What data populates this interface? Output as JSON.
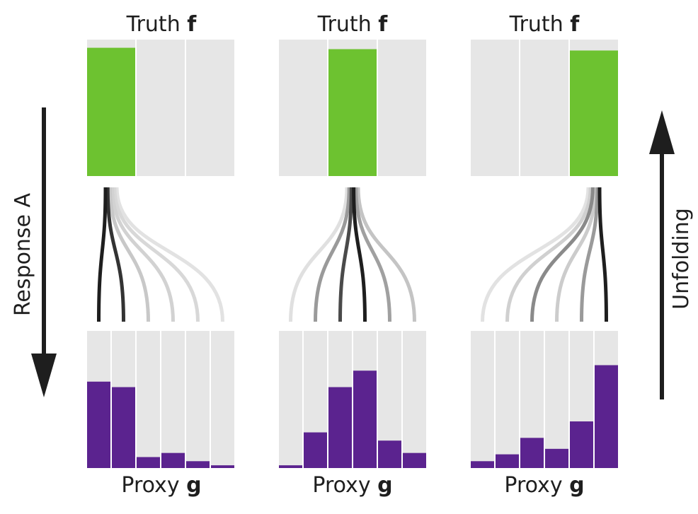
{
  "truth_label": {
    "text": "Truth",
    "symbol": "f"
  },
  "proxy_label": {
    "text": "Proxy",
    "symbol": "g"
  },
  "left_arrow_label": "Response A",
  "right_arrow_label": "Unfolding",
  "colors": {
    "background_bar": "#e6e6e6",
    "truth_fill": "#6dc230",
    "proxy_fill": "#5b238f",
    "arrow": "#1e1e1e",
    "curve_shades": [
      "#1e1e1e",
      "#3a3a3a",
      "#cfcfcf",
      "#d8d8d8",
      "#dadada",
      "#e4e4e4"
    ]
  },
  "panels": [
    {
      "truth_bins": 3,
      "truth_active_bin": 0,
      "truth_level": 0.94,
      "proxy_bins": 6,
      "proxy_values": [
        0.63,
        0.59,
        0.08,
        0.11,
        0.05,
        0.02
      ],
      "curve_shades": [
        "#1e1e1e",
        "#333333",
        "#c8c8c8",
        "#d2d2d2",
        "#d8d8d8",
        "#e2e2e2"
      ]
    },
    {
      "truth_bins": 3,
      "truth_active_bin": 1,
      "truth_level": 0.93,
      "proxy_bins": 6,
      "proxy_values": [
        0.02,
        0.26,
        0.59,
        0.71,
        0.2,
        0.11
      ],
      "curve_shades": [
        "#e0e0e0",
        "#9a9a9a",
        "#4a4a4a",
        "#1e1e1e",
        "#a0a0a0",
        "#c4c4c4"
      ]
    },
    {
      "truth_bins": 3,
      "truth_active_bin": 2,
      "truth_level": 0.92,
      "proxy_bins": 6,
      "proxy_values": [
        0.05,
        0.1,
        0.22,
        0.14,
        0.34,
        0.75
      ],
      "curve_shades": [
        "#e2e2e2",
        "#d0d0d0",
        "#8a8a8a",
        "#cccccc",
        "#9a9a9a",
        "#1e1e1e"
      ]
    }
  ]
}
